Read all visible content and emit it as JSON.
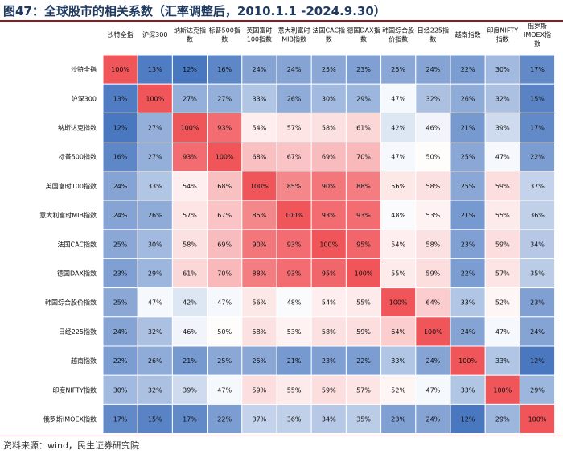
{
  "title": "图47：全球股市的相关系数（汇率调整后，2010.1.1 -2024.9.30）",
  "source": "资料来源：wind，民生证券研究院",
  "colors": {
    "accent": "#8b1c20",
    "title": "#1f3a60",
    "low": "#4a78c0",
    "mid": "#ffffff",
    "high": "#f0555a"
  },
  "chart_data": {
    "type": "heatmap",
    "row_labels": [
      "沙特全指",
      "沪深300",
      "纳斯达克指数",
      "标普500指数",
      "英国富时100指数",
      "意大利富时MIB指数",
      "法国CAC指数",
      "德国DAX指数",
      "韩国综合股价指数",
      "日经225指数",
      "越南指数",
      "印度NIFTY指数",
      "俄罗斯IMOEX指数"
    ],
    "col_labels": [
      [
        "沙特全指"
      ],
      [
        "沪深300"
      ],
      [
        "纳斯达克指",
        "数"
      ],
      [
        "标普500指",
        "数"
      ],
      [
        "英国富时",
        "100指数"
      ],
      [
        "意大利富时",
        "MIB指数"
      ],
      [
        "法国CAC指",
        "数"
      ],
      [
        "德国DAX指",
        "数"
      ],
      [
        "韩国综合股",
        "价指数"
      ],
      [
        "日经225指",
        "数"
      ],
      [
        "越南指数"
      ],
      [
        "印度NIFTY",
        "指数"
      ],
      [
        "俄罗斯",
        "IMOEX指",
        "数"
      ]
    ],
    "values": [
      [
        100,
        13,
        12,
        16,
        24,
        24,
        25,
        23,
        25,
        24,
        22,
        30,
        17
      ],
      [
        13,
        100,
        27,
        27,
        33,
        26,
        30,
        29,
        47,
        32,
        26,
        32,
        15
      ],
      [
        12,
        27,
        100,
        93,
        54,
        57,
        58,
        61,
        42,
        46,
        21,
        39,
        17
      ],
      [
        16,
        27,
        93,
        100,
        68,
        67,
        69,
        70,
        47,
        50,
        25,
        47,
        22
      ],
      [
        24,
        33,
        54,
        68,
        100,
        85,
        90,
        88,
        56,
        58,
        25,
        59,
        37
      ],
      [
        24,
        26,
        57,
        67,
        85,
        100,
        93,
        93,
        48,
        53,
        21,
        55,
        36
      ],
      [
        25,
        30,
        58,
        69,
        90,
        93,
        100,
        95,
        54,
        58,
        23,
        59,
        34
      ],
      [
        23,
        29,
        61,
        70,
        88,
        93,
        95,
        100,
        55,
        59,
        22,
        57,
        35
      ],
      [
        25,
        47,
        42,
        47,
        56,
        48,
        54,
        55,
        100,
        64,
        33,
        52,
        23
      ],
      [
        24,
        32,
        46,
        50,
        58,
        53,
        58,
        59,
        64,
        100,
        24,
        47,
        24
      ],
      [
        22,
        26,
        21,
        25,
        25,
        21,
        23,
        22,
        33,
        24,
        100,
        33,
        12
      ],
      [
        30,
        32,
        39,
        47,
        59,
        55,
        59,
        57,
        52,
        47,
        33,
        100,
        29
      ],
      [
        17,
        15,
        17,
        22,
        37,
        36,
        34,
        35,
        23,
        24,
        12,
        29,
        100
      ]
    ],
    "unit": "%"
  }
}
